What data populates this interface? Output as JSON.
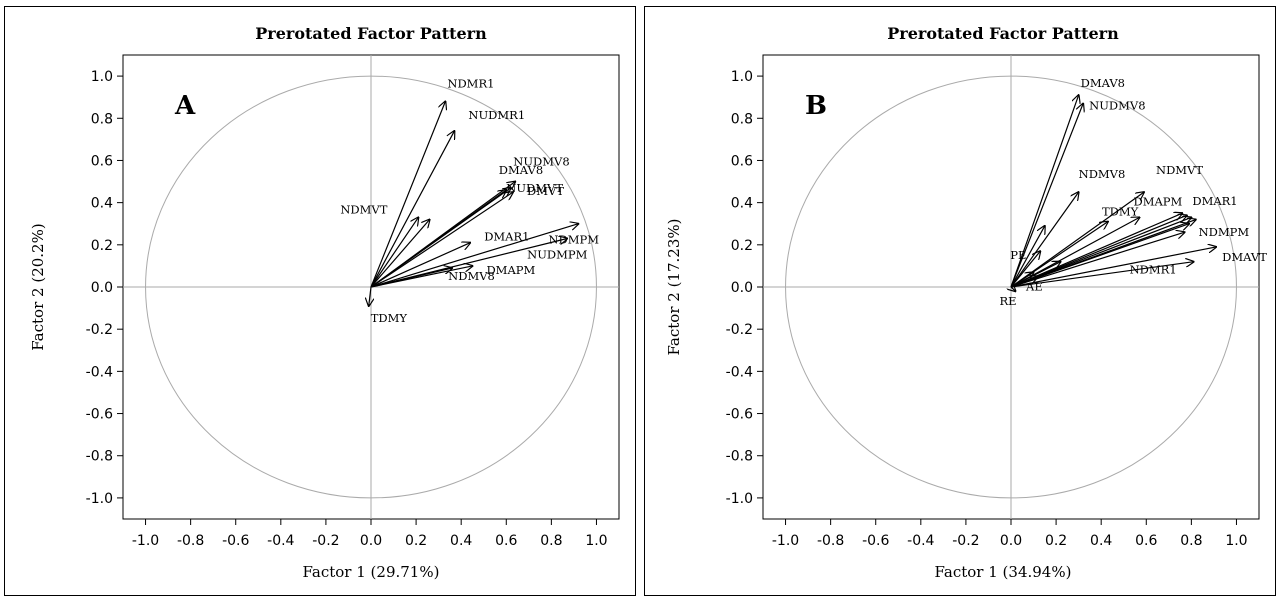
{
  "chart_data": [
    {
      "type": "scatter",
      "panel": "A",
      "title": "Prerotated Factor Pattern",
      "xlabel": "Factor 1 (29.71%)",
      "ylabel": "Factor 2 (20.2%)",
      "xlim": [
        -1.1,
        1.1
      ],
      "ylim": [
        -1.1,
        1.1
      ],
      "x_ticks": [
        "-1.0",
        "-0.8",
        "-0.6",
        "-0.4",
        "-0.2",
        "0.0",
        "0.2",
        "0.4",
        "0.6",
        "0.8",
        "1.0"
      ],
      "y_ticks": [
        "1.0",
        "0.8",
        "0.6",
        "0.4",
        "0.2",
        "0.0",
        "-0.2",
        "-0.4",
        "-0.6",
        "-0.8",
        "-1.0"
      ],
      "unit_circle": true,
      "grid": false,
      "vectors": [
        {
          "x": 0.33,
          "y": 0.88,
          "label": "NDMR1"
        },
        {
          "x": 0.37,
          "y": 0.74,
          "label": "NUDMR1"
        },
        {
          "x": 0.64,
          "y": 0.5,
          "label": "NUDMV8"
        },
        {
          "x": 0.62,
          "y": 0.47,
          "label": "DMAV8"
        },
        {
          "x": 0.6,
          "y": 0.46,
          "label": "NUDMVT"
        },
        {
          "x": 0.63,
          "y": 0.45,
          "label": "DMVT"
        },
        {
          "x": 0.21,
          "y": 0.33,
          "label": "NDMVT"
        },
        {
          "x": 0.44,
          "y": 0.21,
          "label": "DMAR1"
        },
        {
          "x": 0.92,
          "y": 0.3,
          "label": "NDMPM"
        },
        {
          "x": 0.87,
          "y": 0.23,
          "label": "NUDMPM"
        },
        {
          "x": 0.45,
          "y": 0.1,
          "label": "DMAPM"
        },
        {
          "x": 0.36,
          "y": 0.09,
          "label": "NDMV8"
        },
        {
          "x": 0.26,
          "y": 0.32,
          "label": ""
        },
        {
          "x": -0.01,
          "y": -0.09,
          "label": "TDMY"
        }
      ]
    },
    {
      "type": "scatter",
      "panel": "B",
      "title": "Prerotated Factor Pattern",
      "xlabel": "Factor 1 (34.94%)",
      "ylabel": "Factor 2 (17.23%)",
      "xlim": [
        -1.1,
        1.1
      ],
      "ylim": [
        -1.1,
        1.1
      ],
      "x_ticks": [
        "-1.0",
        "-0.8",
        "-0.6",
        "-0.4",
        "-0.2",
        "0.0",
        "0.2",
        "0.4",
        "0.6",
        "0.8",
        "1.0"
      ],
      "y_ticks": [
        "1.0",
        "0.8",
        "0.6",
        "0.4",
        "0.2",
        "0.0",
        "-0.2",
        "-0.4",
        "-0.6",
        "-0.8",
        "-1.0"
      ],
      "unit_circle": true,
      "grid": false,
      "vectors": [
        {
          "x": 0.3,
          "y": 0.91,
          "label": "DMAV8"
        },
        {
          "x": 0.32,
          "y": 0.87,
          "label": "NUDMV8"
        },
        {
          "x": 0.3,
          "y": 0.45,
          "label": "NDMV8"
        },
        {
          "x": 0.59,
          "y": 0.45,
          "label": "NDMVT"
        },
        {
          "x": 0.57,
          "y": 0.33,
          "label": "DMAPM"
        },
        {
          "x": 0.43,
          "y": 0.31,
          "label": "TDMY"
        },
        {
          "x": 0.76,
          "y": 0.35,
          "label": "DMAR1"
        },
        {
          "x": 0.78,
          "y": 0.34,
          "label": ""
        },
        {
          "x": 0.8,
          "y": 0.33,
          "label": ""
        },
        {
          "x": 0.82,
          "y": 0.32,
          "label": ""
        },
        {
          "x": 0.79,
          "y": 0.3,
          "label": ""
        },
        {
          "x": 0.77,
          "y": 0.26,
          "label": "NDMPM"
        },
        {
          "x": 0.91,
          "y": 0.19,
          "label": "DMAVT"
        },
        {
          "x": 0.81,
          "y": 0.12,
          "label": "NDMR1"
        },
        {
          "x": 0.15,
          "y": 0.29,
          "label": ""
        },
        {
          "x": 0.13,
          "y": 0.17,
          "label": "PE"
        },
        {
          "x": 0.1,
          "y": 0.07,
          "label": ""
        },
        {
          "x": 0.22,
          "y": 0.12,
          "label": ""
        },
        {
          "x": 0.12,
          "y": 0.05,
          "label": "AE"
        },
        {
          "x": 0.02,
          "y": -0.02,
          "label": "RE"
        }
      ]
    }
  ]
}
